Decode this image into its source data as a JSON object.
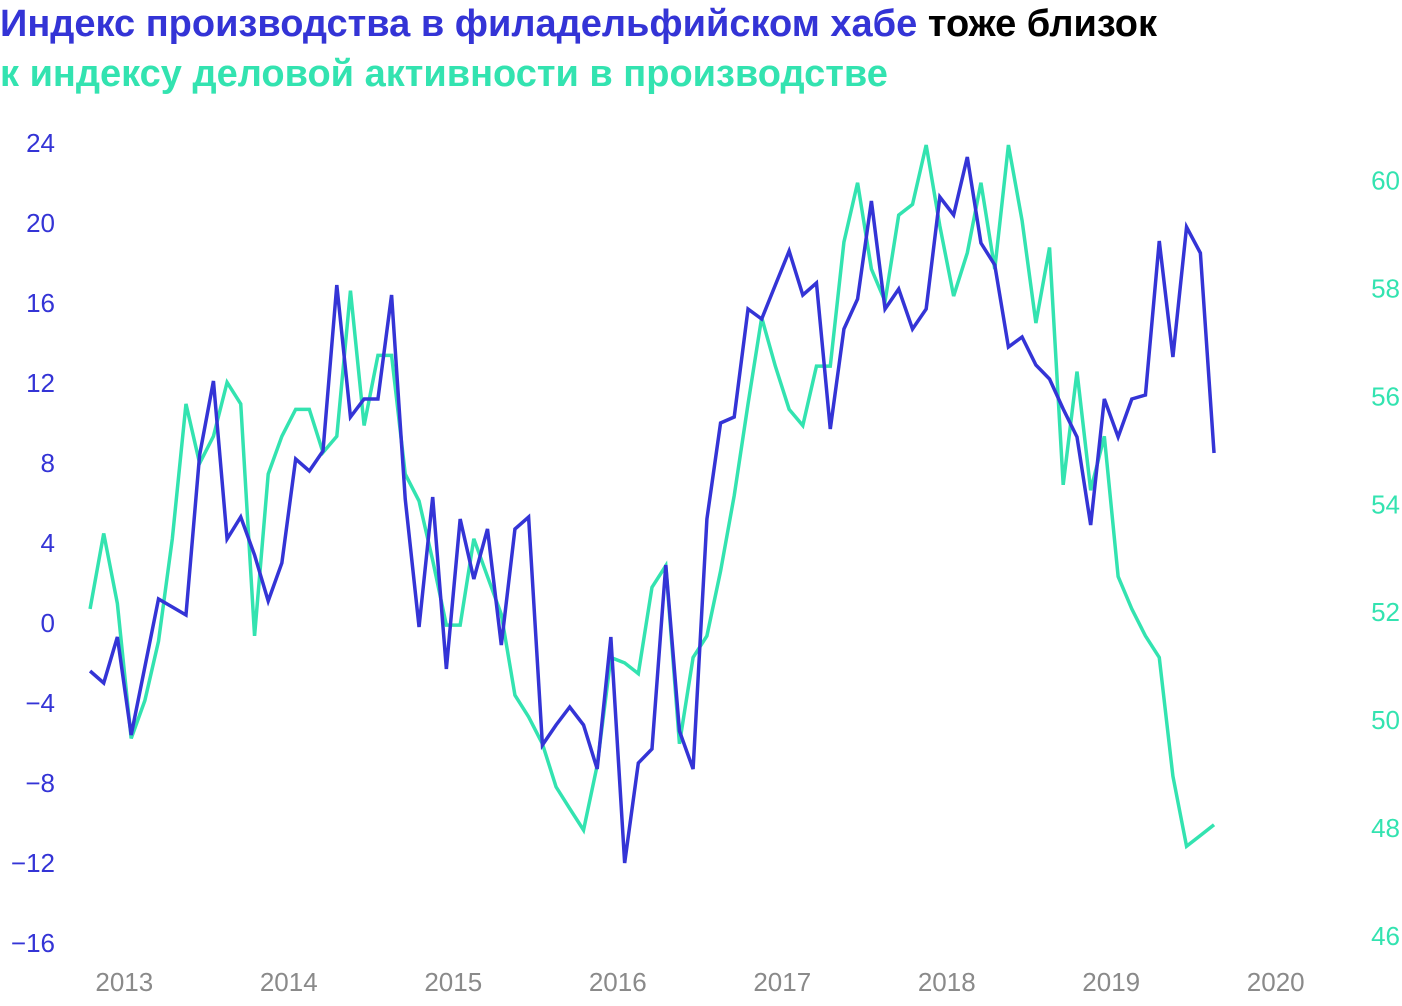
{
  "chart_data": {
    "type": "line",
    "title": [
      {
        "text": "Индекс производства в филадельфийском хабе",
        "color": "#3434d6"
      },
      {
        "text": " тоже близок",
        "color": "#000000"
      },
      {
        "text": "к индексу деловой активности в производстве",
        "color": "#33e3b0"
      }
    ],
    "x": [
      2012.792,
      2012.875,
      2012.958,
      2013.042,
      2013.125,
      2013.208,
      2013.292,
      2013.375,
      2013.458,
      2013.542,
      2013.625,
      2013.708,
      2013.792,
      2013.875,
      2013.958,
      2014.042,
      2014.125,
      2014.208,
      2014.292,
      2014.375,
      2014.458,
      2014.542,
      2014.625,
      2014.708,
      2014.792,
      2014.875,
      2014.958,
      2015.042,
      2015.125,
      2015.208,
      2015.292,
      2015.375,
      2015.458,
      2015.542,
      2015.625,
      2015.708,
      2015.792,
      2015.875,
      2015.958,
      2016.042,
      2016.125,
      2016.208,
      2016.292,
      2016.375,
      2016.458,
      2016.542,
      2016.625,
      2016.708,
      2016.792,
      2016.875,
      2016.958,
      2017.042,
      2017.125,
      2017.208,
      2017.292,
      2017.375,
      2017.458,
      2017.542,
      2017.625,
      2017.708,
      2017.792,
      2017.875,
      2017.958,
      2018.042,
      2018.125,
      2018.208,
      2018.292,
      2018.375,
      2018.458,
      2018.542,
      2018.625,
      2018.708,
      2018.792,
      2018.875,
      2018.958,
      2019.042,
      2019.125,
      2019.208,
      2019.292,
      2019.375,
      2019.458,
      2019.542,
      2019.625
    ],
    "series": [
      {
        "color": "#3434d6",
        "values": [
          -2.3,
          -2.9,
          -0.6,
          -5.5,
          -2.1,
          1.3,
          0.9,
          0.5,
          8.5,
          12.2,
          4.3,
          5.4,
          3.5,
          1.2,
          3.1,
          8.3,
          7.7,
          8.7,
          17.0,
          10.4,
          11.3,
          11.3,
          16.5,
          6.3,
          -0.1,
          6.4,
          -2.2,
          5.3,
          2.3,
          4.8,
          -1.0,
          4.8,
          5.4,
          -6.0,
          -5.0,
          -4.1,
          -5.0,
          -7.2,
          -0.6,
          -11.9,
          -6.9,
          -6.2,
          3.0,
          -5.3,
          -7.2,
          5.3,
          10.1,
          10.4,
          15.8,
          15.3,
          17.0,
          18.7,
          16.5,
          17.1,
          9.8,
          14.8,
          16.3,
          21.2,
          15.8,
          16.8,
          14.8,
          15.8,
          21.4,
          20.5,
          23.4,
          19.1,
          18.0,
          13.9,
          14.4,
          13.0,
          12.3,
          10.8,
          9.4,
          5.0,
          11.3,
          9.4,
          11.3,
          11.5,
          19.2,
          13.4,
          19.9,
          18.6,
          8.6
        ]
      },
      {
        "color": "#33e3b0",
        "axis": "y2",
        "values": [
          52.1,
          53.5,
          52.2,
          49.7,
          50.4,
          51.5,
          53.4,
          55.9,
          54.8,
          55.3,
          56.3,
          55.9,
          51.6,
          54.6,
          55.3,
          55.8,
          55.8,
          55.0,
          55.3,
          58.0,
          55.5,
          56.8,
          56.8,
          54.6,
          54.1,
          53.0,
          51.8,
          51.8,
          53.4,
          52.7,
          52.0,
          50.5,
          50.1,
          49.6,
          48.8,
          48.4,
          48.0,
          49.2,
          51.2,
          51.1,
          50.9,
          52.5,
          52.9,
          49.6,
          51.2,
          51.6,
          52.8,
          54.2,
          55.9,
          57.5,
          56.6,
          55.8,
          55.5,
          56.6,
          56.6,
          58.9,
          60.0,
          58.4,
          57.8,
          59.4,
          59.6,
          60.7,
          59.2,
          57.9,
          58.7,
          60.0,
          58.4,
          60.7,
          59.3,
          57.4,
          58.8,
          54.4,
          56.5,
          54.3,
          55.3,
          52.7,
          52.1,
          51.6,
          51.2,
          49.0,
          47.7,
          47.9,
          48.1
        ]
      }
    ],
    "xlim": [
      2012.67,
      2020.33
    ],
    "xticks": [
      2013,
      2014,
      2015,
      2016,
      2017,
      2018,
      2019,
      2020
    ],
    "ylim": [
      -16,
      24
    ],
    "yticks": [
      {
        "value": -16,
        "label": "−16"
      },
      {
        "value": -12,
        "label": "−12"
      },
      {
        "value": -8,
        "label": "−8"
      },
      {
        "value": -4,
        "label": "−4"
      },
      0,
      4,
      8,
      12,
      16,
      20,
      24
    ],
    "y2lim": [
      45.87,
      60.7
    ],
    "y2ticks": [
      46,
      48,
      50,
      52,
      54,
      56,
      58,
      60
    ]
  }
}
